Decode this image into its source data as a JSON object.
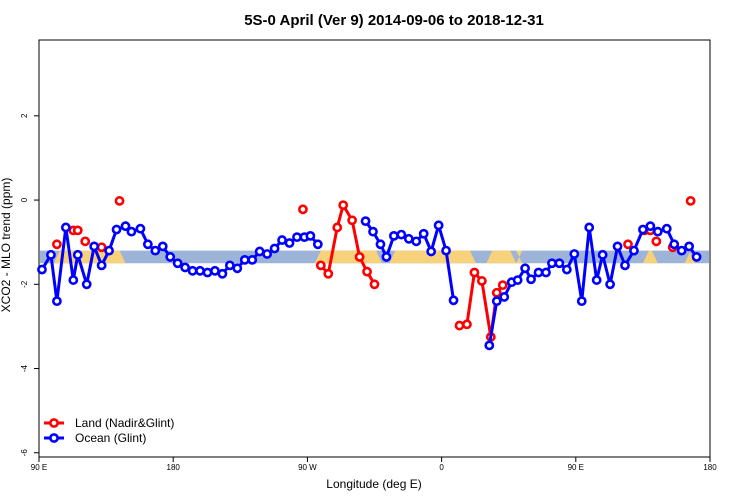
{
  "chart_data": {
    "type": "line",
    "title": "5S-0 April (Ver 9)   2014-09-06 to 2018-12-31",
    "xlabel": "Longitude (deg E)",
    "ylabel": "XCO2 - MLO trend (ppm)",
    "x_ticks": [
      {
        "value": 90,
        "label": "90 E"
      },
      {
        "value": 180,
        "label": "180"
      },
      {
        "value": 270,
        "label": "90 W"
      },
      {
        "value": 360,
        "label": "0"
      },
      {
        "value": 450,
        "label": "90 E"
      },
      {
        "value": 540,
        "label": "180"
      }
    ],
    "y_ticks": [
      {
        "value": -6,
        "label": "-6"
      },
      {
        "value": -4,
        "label": "-4"
      },
      {
        "value": -2,
        "label": "-2"
      },
      {
        "value": 0,
        "label": "0"
      },
      {
        "value": 2,
        "label": "2"
      }
    ],
    "xlim": [
      90,
      540
    ],
    "ylim": [
      -6.1,
      3.8
    ],
    "grid": false,
    "legend_position": "bottom-left",
    "band": {
      "y_range": [
        -1.5,
        -1.2
      ],
      "color": "#9db4d8",
      "highlight_color": "#f8d27a",
      "highlight_segments": [
        [
          100,
          148
        ],
        [
          275,
          320
        ],
        [
          325,
          383
        ],
        [
          390,
          410
        ],
        [
          410,
          414
        ],
        [
          495,
          505
        ],
        [
          523,
          530
        ]
      ]
    },
    "series": [
      {
        "name": "Land (Nadir&Glint)",
        "color": "#ff0000",
        "segments": [
          [
            [
              102,
              -1.05
            ]
          ],
          [
            [
              113,
              -0.72
            ],
            [
              116,
              -0.72
            ]
          ],
          [
            [
              121,
              -0.98
            ]
          ],
          [
            [
              132,
              -1.12
            ]
          ],
          [
            [
              144,
              -0.02
            ]
          ],
          [
            [
              267,
              -0.22
            ]
          ],
          [
            [
              279,
              -1.55
            ],
            [
              284,
              -1.75
            ],
            [
              290,
              -0.65
            ],
            [
              294,
              -0.12
            ],
            [
              300,
              -0.48
            ],
            [
              305,
              -1.35
            ],
            [
              310,
              -1.7
            ],
            [
              315,
              -2.0
            ]
          ],
          [
            [
              372,
              -2.98
            ],
            [
              377,
              -2.95
            ],
            [
              382,
              -1.72
            ],
            [
              387,
              -1.92
            ],
            [
              393,
              -3.25
            ],
            [
              397,
              -2.2
            ],
            [
              401,
              -2.02
            ]
          ],
          [
            [
              485,
              -1.05
            ]
          ],
          [
            [
              496,
              -0.72
            ],
            [
              500,
              -0.72
            ]
          ],
          [
            [
              504,
              -0.98
            ]
          ],
          [
            [
              515,
              -1.12
            ]
          ],
          [
            [
              527,
              -0.02
            ]
          ]
        ]
      },
      {
        "name": "Ocean (Glint)",
        "color": "#0000ff",
        "segments": [
          [
            [
              92,
              -1.65
            ],
            [
              98,
              -1.3
            ],
            [
              102,
              -2.4
            ],
            [
              108,
              -0.65
            ],
            [
              113,
              -1.9
            ],
            [
              116,
              -1.3
            ],
            [
              122,
              -2.0
            ],
            [
              127,
              -1.1
            ],
            [
              132,
              -1.55
            ],
            [
              137,
              -1.2
            ],
            [
              142,
              -0.7
            ],
            [
              148,
              -0.62
            ],
            [
              152,
              -0.75
            ],
            [
              158,
              -0.68
            ],
            [
              163,
              -1.05
            ],
            [
              168,
              -1.2
            ],
            [
              173,
              -1.1
            ],
            [
              178,
              -1.35
            ],
            [
              183,
              -1.5
            ],
            [
              188,
              -1.6
            ],
            [
              193,
              -1.68
            ],
            [
              198,
              -1.68
            ],
            [
              203,
              -1.72
            ],
            [
              208,
              -1.68
            ],
            [
              213,
              -1.75
            ],
            [
              218,
              -1.55
            ],
            [
              223,
              -1.62
            ],
            [
              228,
              -1.42
            ],
            [
              233,
              -1.42
            ],
            [
              238,
              -1.22
            ],
            [
              243,
              -1.28
            ],
            [
              248,
              -1.15
            ],
            [
              253,
              -0.95
            ],
            [
              258,
              -1.02
            ],
            [
              263,
              -0.88
            ],
            [
              268,
              -0.88
            ],
            [
              272,
              -0.85
            ],
            [
              277,
              -1.05
            ]
          ],
          [
            [
              309,
              -0.5
            ],
            [
              314,
              -0.75
            ],
            [
              319,
              -1.05
            ],
            [
              323,
              -1.35
            ],
            [
              328,
              -0.85
            ],
            [
              333,
              -0.82
            ],
            [
              338,
              -0.92
            ],
            [
              343,
              -0.98
            ],
            [
              348,
              -0.8
            ],
            [
              353,
              -1.22
            ],
            [
              358,
              -0.6
            ],
            [
              363,
              -1.2
            ],
            [
              368,
              -2.38
            ]
          ],
          [
            [
              392,
              -3.45
            ],
            [
              397,
              -2.4
            ],
            [
              402,
              -2.3
            ],
            [
              407,
              -1.95
            ],
            [
              411,
              -1.9
            ],
            [
              416,
              -1.62
            ],
            [
              420,
              -1.88
            ],
            [
              425,
              -1.72
            ],
            [
              430,
              -1.72
            ],
            [
              434,
              -1.5
            ],
            [
              439,
              -1.5
            ],
            [
              444,
              -1.65
            ],
            [
              449,
              -1.28
            ],
            [
              454,
              -2.4
            ],
            [
              459,
              -0.65
            ],
            [
              464,
              -1.9
            ],
            [
              468,
              -1.3
            ],
            [
              473,
              -2.0
            ],
            [
              478,
              -1.1
            ],
            [
              483,
              -1.55
            ],
            [
              489,
              -1.2
            ],
            [
              495,
              -0.7
            ],
            [
              500,
              -0.62
            ],
            [
              505,
              -0.75
            ],
            [
              511,
              -0.68
            ],
            [
              516,
              -1.05
            ],
            [
              521,
              -1.2
            ],
            [
              526,
              -1.1
            ],
            [
              531,
              -1.35
            ]
          ]
        ]
      }
    ]
  }
}
